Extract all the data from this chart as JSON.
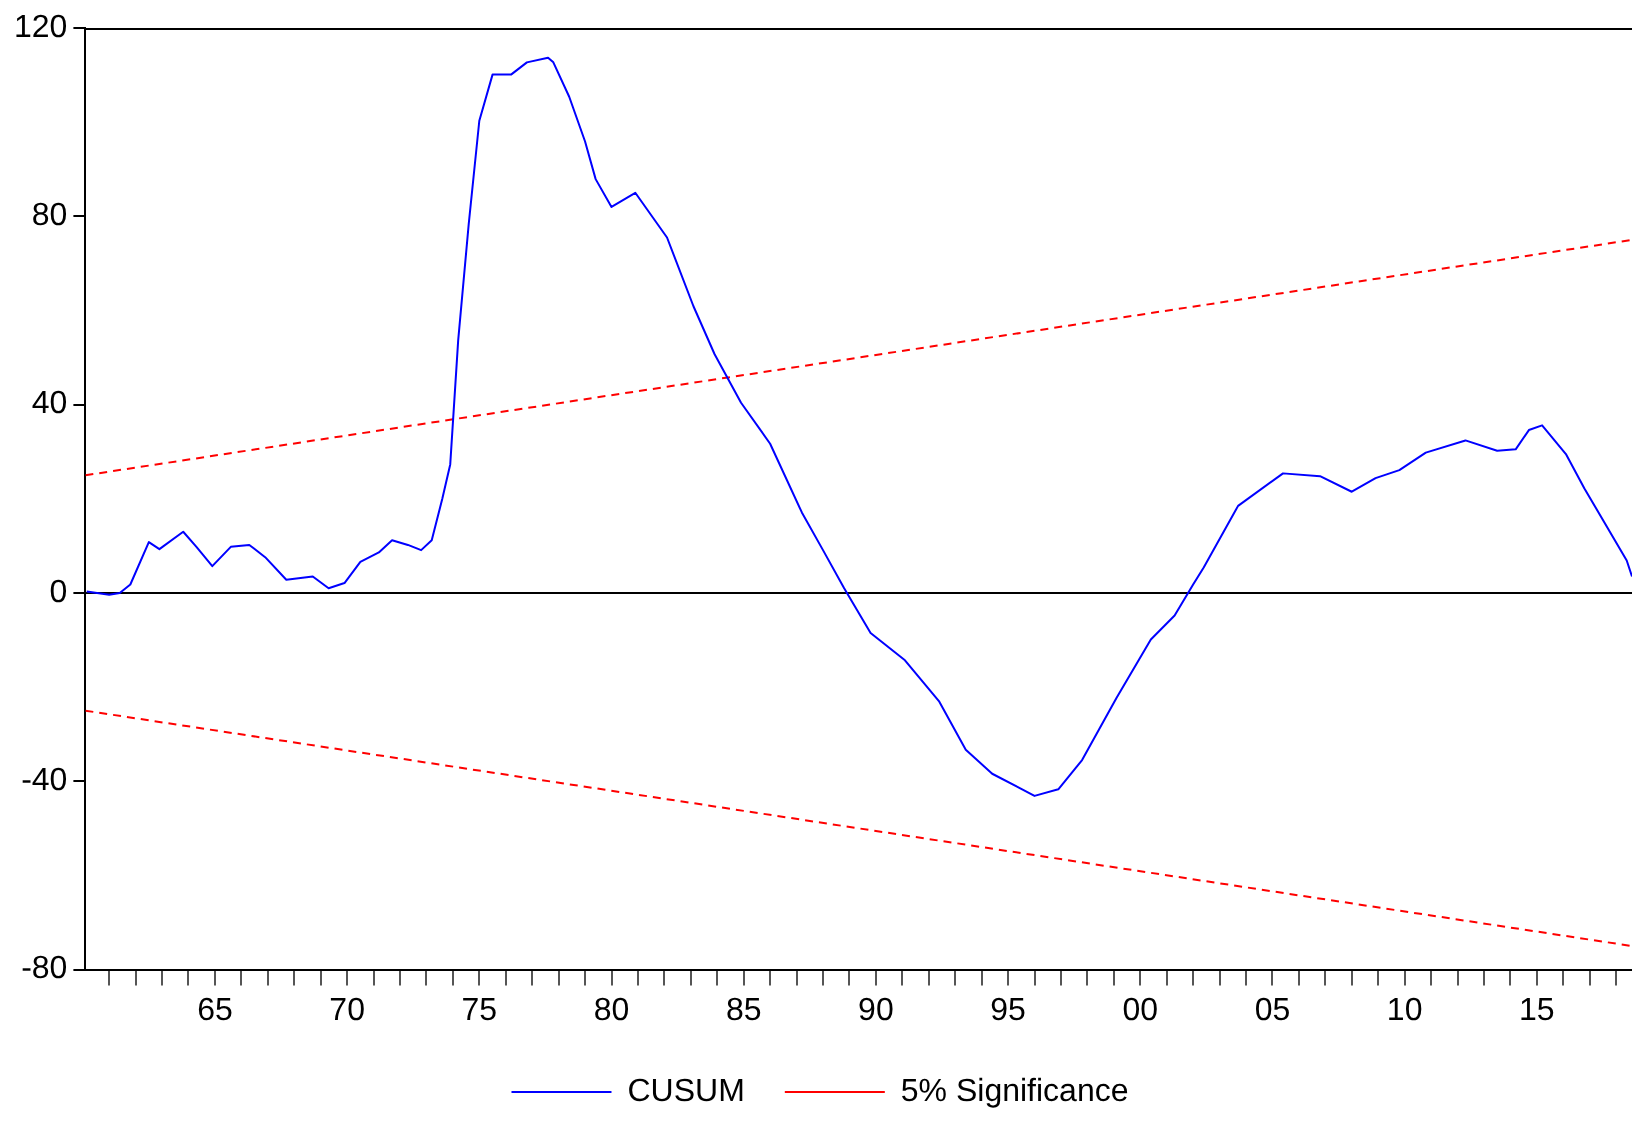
{
  "chart_data": {
    "type": "line",
    "legend": "bottom",
    "grid": false,
    "marker": "none",
    "xlim": [
      1960.1,
      2018.6
    ],
    "ylim": [
      -80,
      120
    ],
    "yticks": [
      -80,
      -40,
      0,
      40,
      80,
      120
    ],
    "xticks": [
      {
        "value": 1961,
        "label": null
      },
      {
        "value": 1962,
        "label": null
      },
      {
        "value": 1963,
        "label": null
      },
      {
        "value": 1964,
        "label": null
      },
      {
        "value": 1965,
        "label": "65"
      },
      {
        "value": 1966,
        "label": null
      },
      {
        "value": 1967,
        "label": null
      },
      {
        "value": 1968,
        "label": null
      },
      {
        "value": 1969,
        "label": null
      },
      {
        "value": 1970,
        "label": "70"
      },
      {
        "value": 1971,
        "label": null
      },
      {
        "value": 1972,
        "label": null
      },
      {
        "value": 1973,
        "label": null
      },
      {
        "value": 1974,
        "label": null
      },
      {
        "value": 1975,
        "label": "75"
      },
      {
        "value": 1976,
        "label": null
      },
      {
        "value": 1977,
        "label": null
      },
      {
        "value": 1978,
        "label": null
      },
      {
        "value": 1979,
        "label": null
      },
      {
        "value": 1980,
        "label": "80"
      },
      {
        "value": 1981,
        "label": null
      },
      {
        "value": 1982,
        "label": null
      },
      {
        "value": 1983,
        "label": null
      },
      {
        "value": 1984,
        "label": null
      },
      {
        "value": 1985,
        "label": "85"
      },
      {
        "value": 1986,
        "label": null
      },
      {
        "value": 1987,
        "label": null
      },
      {
        "value": 1988,
        "label": null
      },
      {
        "value": 1989,
        "label": null
      },
      {
        "value": 1990,
        "label": "90"
      },
      {
        "value": 1991,
        "label": null
      },
      {
        "value": 1992,
        "label": null
      },
      {
        "value": 1993,
        "label": null
      },
      {
        "value": 1994,
        "label": null
      },
      {
        "value": 1995,
        "label": "95"
      },
      {
        "value": 1996,
        "label": null
      },
      {
        "value": 1997,
        "label": null
      },
      {
        "value": 1998,
        "label": null
      },
      {
        "value": 1999,
        "label": null
      },
      {
        "value": 2000,
        "label": "00"
      },
      {
        "value": 2001,
        "label": null
      },
      {
        "value": 2002,
        "label": null
      },
      {
        "value": 2003,
        "label": null
      },
      {
        "value": 2004,
        "label": null
      },
      {
        "value": 2005,
        "label": "05"
      },
      {
        "value": 2006,
        "label": null
      },
      {
        "value": 2007,
        "label": null
      },
      {
        "value": 2008,
        "label": null
      },
      {
        "value": 2009,
        "label": null
      },
      {
        "value": 2010,
        "label": "10"
      },
      {
        "value": 2011,
        "label": null
      },
      {
        "value": 2012,
        "label": null
      },
      {
        "value": 2013,
        "label": null
      },
      {
        "value": 2014,
        "label": null
      },
      {
        "value": 2015,
        "label": "15"
      },
      {
        "value": 2016,
        "label": null
      },
      {
        "value": 2017,
        "label": null
      },
      {
        "value": 2018,
        "label": null
      }
    ],
    "ref_lines": [
      {
        "axis": "y",
        "value": 0,
        "color": "#000000",
        "line_style": "solid"
      }
    ],
    "series": [
      {
        "name": "CUSUM",
        "color": "#0000ff",
        "line_style": "solid",
        "x": [
          1960.15,
          1961.0,
          1961.4,
          1961.8,
          1962.5,
          1962.9,
          1963.8,
          1964.3,
          1964.9,
          1965.6,
          1966.3,
          1966.9,
          1967.7,
          1968.7,
          1969.3,
          1969.9,
          1970.5,
          1971.2,
          1971.7,
          1972.3,
          1972.8,
          1973.2,
          1973.6,
          1973.9,
          1974.2,
          1974.6,
          1975.0,
          1975.5,
          1976.2,
          1976.8,
          1977.6,
          1977.8,
          1978.4,
          1979.0,
          1979.4,
          1980.0,
          1980.9,
          1982.1,
          1983.1,
          1983.9,
          1984.9,
          1986.0,
          1987.2,
          1988.0,
          1988.8,
          1989.8,
          1991.1,
          1992.4,
          1993.4,
          1994.4,
          1996.0,
          1996.9,
          1997.8,
          1999.1,
          2000.4,
          2001.3,
          2002.0,
          2002.4,
          2003.7,
          2005.4,
          2006.8,
          2008.0,
          2008.9,
          2009.8,
          2010.8,
          2012.3,
          2013.5,
          2014.2,
          2014.7,
          2015.2,
          2016.1,
          2016.8,
          2018.4,
          2018.6
        ],
        "values": [
          0.3,
          -0.4,
          0,
          1.8,
          10.8,
          9.3,
          13.0,
          9.8,
          5.7,
          9.8,
          10.2,
          7.6,
          2.8,
          3.5,
          1.0,
          2.1,
          6.6,
          8.6,
          11.2,
          10.2,
          9.1,
          11.2,
          20.0,
          27.3,
          53.6,
          78.4,
          100.3,
          110.1,
          110.1,
          112.7,
          113.7,
          112.7,
          105.4,
          95.9,
          87.9,
          82.0,
          85.0,
          75.5,
          60.9,
          50.7,
          40.4,
          31.7,
          17.1,
          9.1,
          1.0,
          -8.5,
          -14.3,
          -23.1,
          -33.3,
          -38.4,
          -43.1,
          -41.7,
          -35.5,
          -22.3,
          -9.9,
          -4.8,
          1.8,
          5.4,
          18.5,
          25.4,
          24.8,
          21.5,
          24.4,
          26.1,
          29.8,
          32.4,
          30.2,
          30.5,
          34.6,
          35.6,
          29.5,
          22.2,
          6.9,
          3.5
        ]
      },
      {
        "name": "5% Significance",
        "color": "#ff0000",
        "line_style": "dashed",
        "x": [
          1960.1,
          2018.6
        ],
        "values": [
          25,
          75
        ]
      },
      {
        "color": "#ff0000",
        "line_style": "dashed",
        "x": [
          1960.1,
          2018.6
        ],
        "values": [
          -25,
          -75
        ]
      }
    ]
  }
}
